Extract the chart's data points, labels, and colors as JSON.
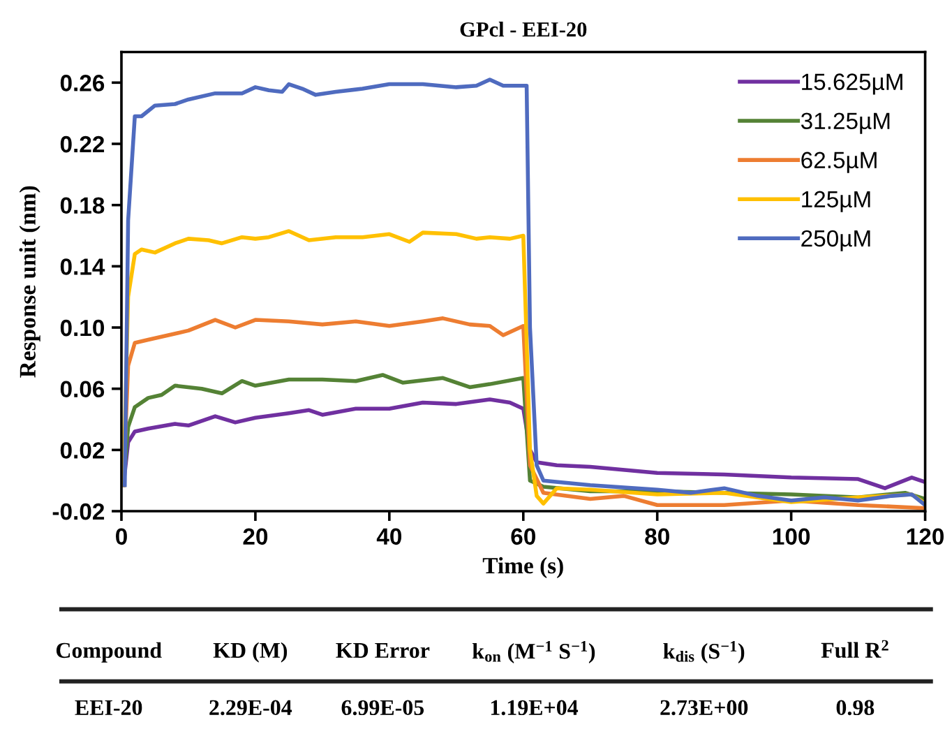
{
  "chart_data": {
    "type": "line",
    "title": "GPcl - EEI-20",
    "xlabel": "Time (s)",
    "ylabel": "Response unit (nm)",
    "xlim": [
      0,
      120
    ],
    "xticks": [
      0,
      20,
      40,
      60,
      80,
      100,
      120
    ],
    "ylim": [
      -0.02,
      0.28
    ],
    "yticks": [
      -0.02,
      0.02,
      0.06,
      {
        "value": 0.1,
        "label": "0.10"
      },
      0.14,
      0.18,
      0.22,
      0.26
    ],
    "grid": false,
    "legend": "top right",
    "marker": "none",
    "line_style": "solid",
    "series": [
      {
        "name": "15.625µM",
        "color": "#7030a0",
        "x": [
          0.3,
          1,
          2,
          4,
          8,
          10,
          14,
          17,
          20,
          25,
          28,
          30,
          35,
          40,
          45,
          50,
          55,
          58,
          60,
          61,
          62,
          65,
          70,
          80,
          90,
          100,
          110,
          114,
          118,
          120
        ],
        "values": [
          -0.003,
          0.025,
          0.032,
          0.034,
          0.037,
          0.036,
          0.042,
          0.038,
          0.041,
          0.044,
          0.046,
          0.043,
          0.047,
          0.047,
          0.051,
          0.05,
          0.053,
          0.051,
          0.047,
          0.02,
          0.012,
          0.01,
          0.009,
          0.005,
          0.004,
          0.002,
          0.001,
          -0.005,
          0.002,
          -0.001
        ]
      },
      {
        "name": "31.25µM",
        "color": "#548235",
        "x": [
          0.3,
          1,
          2,
          4,
          6,
          8,
          12,
          15,
          18,
          20,
          25,
          30,
          35,
          39,
          42,
          48,
          52,
          55,
          60,
          61,
          63,
          70,
          80,
          90,
          100,
          110,
          117,
          120
        ],
        "values": [
          -0.003,
          0.035,
          0.048,
          0.054,
          0.056,
          0.062,
          0.06,
          0.057,
          0.065,
          0.062,
          0.066,
          0.066,
          0.065,
          0.069,
          0.064,
          0.067,
          0.061,
          0.063,
          0.067,
          0.0,
          -0.004,
          -0.007,
          -0.007,
          -0.008,
          -0.009,
          -0.011,
          -0.008,
          -0.012
        ]
      },
      {
        "name": "62.5µM",
        "color": "#ed7d31",
        "x": [
          0.3,
          1,
          2,
          4,
          7,
          10,
          14,
          17,
          20,
          25,
          30,
          35,
          40,
          45,
          48,
          52,
          55,
          57,
          60,
          61,
          63,
          70,
          75,
          80,
          90,
          100,
          110,
          120
        ],
        "values": [
          -0.003,
          0.075,
          0.09,
          0.092,
          0.095,
          0.098,
          0.105,
          0.1,
          0.105,
          0.104,
          0.102,
          0.104,
          0.101,
          0.104,
          0.106,
          0.102,
          0.101,
          0.095,
          0.101,
          0.01,
          -0.008,
          -0.012,
          -0.01,
          -0.016,
          -0.016,
          -0.013,
          -0.016,
          -0.018
        ]
      },
      {
        "name": "125µM",
        "color": "#ffc000",
        "x": [
          0.3,
          1,
          2,
          3,
          5,
          8,
          10,
          13,
          15,
          18,
          20,
          22,
          25,
          28,
          32,
          36,
          40,
          43,
          45,
          50,
          53,
          55,
          58,
          60,
          61,
          62,
          63,
          65,
          70,
          80,
          90,
          100,
          110,
          118,
          120
        ],
        "values": [
          -0.003,
          0.12,
          0.148,
          0.151,
          0.149,
          0.155,
          0.158,
          0.157,
          0.155,
          0.159,
          0.158,
          0.159,
          0.163,
          0.157,
          0.159,
          0.159,
          0.161,
          0.156,
          0.162,
          0.161,
          0.158,
          0.159,
          0.158,
          0.16,
          0.02,
          -0.01,
          -0.015,
          -0.005,
          -0.006,
          -0.009,
          -0.008,
          -0.014,
          -0.011,
          -0.009,
          -0.015
        ]
      },
      {
        "name": "250µM",
        "color": "#4f6bbf",
        "x": [
          0.5,
          1,
          2,
          3,
          5,
          8,
          10,
          14,
          18,
          20,
          22,
          24,
          25,
          27,
          29,
          32,
          36,
          40,
          45,
          50,
          53,
          55,
          57,
          60,
          60.5,
          61,
          62,
          63,
          70,
          80,
          85,
          90,
          95,
          100,
          105,
          110,
          115,
          118,
          120
        ],
        "values": [
          -0.003,
          0.17,
          0.238,
          0.238,
          0.245,
          0.246,
          0.249,
          0.253,
          0.253,
          0.257,
          0.255,
          0.254,
          0.259,
          0.256,
          0.252,
          0.254,
          0.256,
          0.259,
          0.259,
          0.257,
          0.258,
          0.262,
          0.258,
          0.258,
          0.258,
          0.1,
          0.01,
          0.0,
          -0.003,
          -0.006,
          -0.008,
          -0.005,
          -0.01,
          -0.013,
          -0.011,
          -0.013,
          -0.01,
          -0.009,
          -0.016
        ]
      }
    ],
    "annotations": [
      "Compound",
      "KD (M)",
      "KD Error",
      "k$_{on}$ (M$^{−1}$ S$^{−1}$)",
      "k$_{dis}$ (S$^{−1}$)",
      "Full R$^{2}$",
      "EEI-20",
      "2.29E-04",
      "6.99E-05",
      "1.19E+04",
      "2.73E+00",
      "0.98"
    ]
  }
}
